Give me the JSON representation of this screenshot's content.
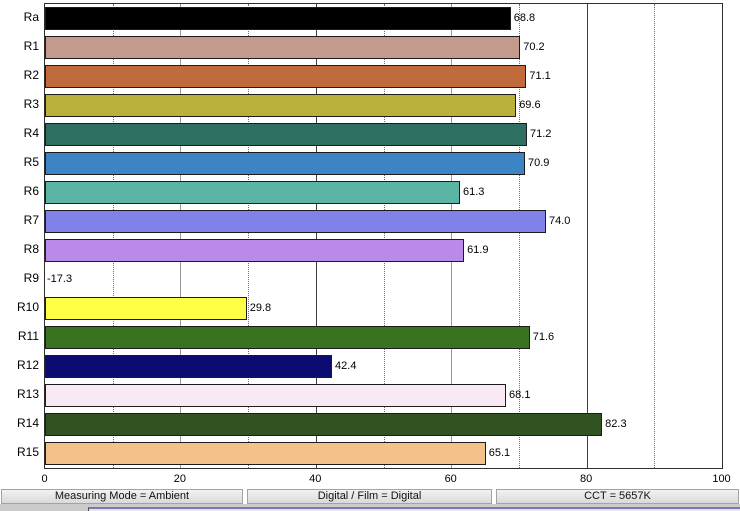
{
  "chart_data": {
    "type": "bar",
    "orientation": "horizontal",
    "title": "",
    "xlabel": "",
    "ylabel": "",
    "categories": [
      "Ra",
      "R1",
      "R2",
      "R3",
      "R4",
      "R5",
      "R6",
      "R7",
      "R8",
      "R9",
      "R10",
      "R11",
      "R12",
      "R13",
      "R14",
      "R15"
    ],
    "values": [
      68.8,
      70.2,
      71.1,
      69.6,
      71.2,
      70.9,
      61.3,
      74.0,
      61.9,
      -17.3,
      29.8,
      71.6,
      42.4,
      68.1,
      82.3,
      65.1
    ],
    "value_labels": [
      "68.8",
      "70.2",
      "71.1",
      "69.6",
      "71.2",
      "70.9",
      "61.3",
      "74.0",
      "61.9",
      "-17.3",
      "29.8",
      "71.6",
      "42.4",
      "68.1",
      "82.3",
      "65.1"
    ],
    "bar_colors": [
      "#000000",
      "#c39a8b",
      "#c06b3c",
      "#b9b13a",
      "#2e6f62",
      "#3c84c4",
      "#5bb5a4",
      "#8181ea",
      "#b98ae9",
      "none",
      "#ffff45",
      "#3a7320",
      "#0b0b72",
      "#f9e9f5",
      "#315322",
      "#f3c189"
    ],
    "xlim": [
      0,
      100
    ],
    "x_ticks": [
      0,
      20,
      40,
      60,
      80,
      100
    ],
    "x_tick_labels": [
      "0",
      "20",
      "40",
      "60",
      "80",
      "100"
    ],
    "grid": {
      "minor_dotted": [
        10,
        30,
        50,
        70,
        90
      ],
      "medium_solid": [
        20,
        60
      ],
      "major_solid": [
        40,
        80
      ]
    },
    "legend": "none"
  },
  "status_bar": {
    "segments": [
      {
        "label": "Measuring Mode = Ambient"
      },
      {
        "label": "Digital / Film = Digital"
      },
      {
        "label": "CCT = 5657K"
      }
    ]
  },
  "palette": {
    "bar_border": "#1c1c1c",
    "plot_border": "#2e2e2e",
    "grid_minor": "#707070",
    "grid_medium": "#9a9a9a",
    "grid_major": "#3f3f3f",
    "status_border": "#a3a3a3",
    "window_edge_accent": "#7e76b6"
  }
}
